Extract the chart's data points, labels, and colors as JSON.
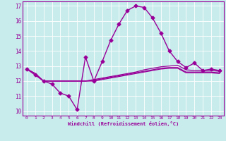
{
  "xlabel": "Windchill (Refroidissement éolien,°C)",
  "bg_color": "#c8ecec",
  "line_color": "#990099",
  "grid_color": "#ffffff",
  "xlim": [
    -0.5,
    23.5
  ],
  "ylim": [
    9.7,
    17.3
  ],
  "yticks": [
    10,
    11,
    12,
    13,
    14,
    15,
    16,
    17
  ],
  "xticks": [
    0,
    1,
    2,
    3,
    4,
    5,
    6,
    7,
    8,
    9,
    10,
    11,
    12,
    13,
    14,
    15,
    16,
    17,
    18,
    19,
    20,
    21,
    22,
    23
  ],
  "series": [
    {
      "x": [
        0,
        1,
        2,
        3,
        4,
        5,
        6,
        7,
        8,
        9,
        10,
        11,
        12,
        13,
        14,
        15,
        16,
        17,
        18,
        19,
        20,
        21,
        22,
        23
      ],
      "y": [
        12.8,
        12.4,
        12.0,
        11.8,
        11.2,
        11.0,
        10.1,
        13.6,
        12.0,
        13.3,
        14.7,
        15.8,
        16.7,
        17.0,
        16.9,
        16.2,
        15.2,
        14.0,
        13.3,
        12.9,
        13.2,
        12.7,
        12.8,
        12.7
      ],
      "marker": "D",
      "markersize": 2.5,
      "linewidth": 1.0,
      "zorder": 3
    },
    {
      "x": [
        0,
        1,
        2,
        3,
        4,
        5,
        6,
        7,
        8,
        9,
        10,
        11,
        12,
        13,
        14,
        15,
        16,
        17,
        18,
        19,
        20,
        21,
        22,
        23
      ],
      "y": [
        12.8,
        12.5,
        12.0,
        12.0,
        12.0,
        12.0,
        12.0,
        12.0,
        12.1,
        12.2,
        12.3,
        12.4,
        12.5,
        12.6,
        12.75,
        12.85,
        12.95,
        13.0,
        13.05,
        12.75,
        12.7,
        12.7,
        12.7,
        12.65
      ],
      "marker": null,
      "markersize": 0,
      "linewidth": 0.9,
      "zorder": 2
    },
    {
      "x": [
        0,
        1,
        2,
        3,
        4,
        5,
        6,
        7,
        8,
        9,
        10,
        11,
        12,
        13,
        14,
        15,
        16,
        17,
        18,
        19,
        20,
        21,
        22,
        23
      ],
      "y": [
        12.8,
        12.5,
        12.0,
        12.0,
        12.0,
        12.0,
        12.0,
        12.0,
        12.05,
        12.15,
        12.25,
        12.35,
        12.45,
        12.55,
        12.65,
        12.75,
        12.85,
        12.9,
        12.9,
        12.6,
        12.6,
        12.6,
        12.6,
        12.55
      ],
      "marker": null,
      "markersize": 0,
      "linewidth": 0.9,
      "zorder": 2
    },
    {
      "x": [
        0,
        1,
        2,
        3,
        4,
        5,
        6,
        7,
        8,
        9,
        10,
        11,
        12,
        13,
        14,
        15,
        16,
        17,
        18,
        19,
        20,
        21,
        22,
        23
      ],
      "y": [
        12.8,
        12.5,
        12.0,
        12.0,
        12.0,
        12.0,
        12.0,
        12.0,
        12.0,
        12.1,
        12.2,
        12.3,
        12.4,
        12.5,
        12.6,
        12.7,
        12.8,
        12.85,
        12.85,
        12.55,
        12.55,
        12.55,
        12.55,
        12.5
      ],
      "marker": null,
      "markersize": 0,
      "linewidth": 0.9,
      "zorder": 2
    }
  ]
}
